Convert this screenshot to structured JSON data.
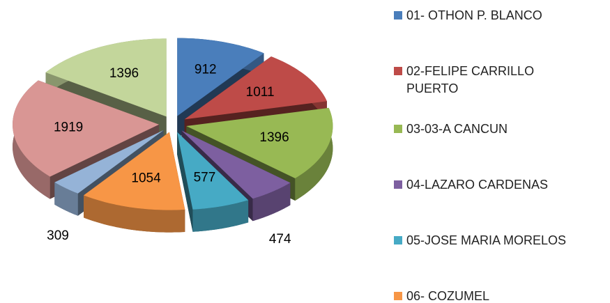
{
  "chart_data": {
    "type": "pie3d",
    "categories": [
      "01- OTHON P. BLANCO",
      "02-FELIPE CARRILLO PUERTO",
      "03-03-A CANCUN",
      "04-LAZARO CARDENAS",
      "05-JOSE MARIA MORELOS",
      "06- COZUMEL",
      null,
      null,
      null
    ],
    "values": [
      912,
      1011,
      1396,
      474,
      577,
      1054,
      309,
      1919,
      1396
    ],
    "colors": [
      "#4a7ebb",
      "#be4b48",
      "#98b954",
      "#7d5fa0",
      "#46aac5",
      "#f79646",
      "#95b3d7",
      "#d99694",
      "#c3d69b"
    ]
  }
}
